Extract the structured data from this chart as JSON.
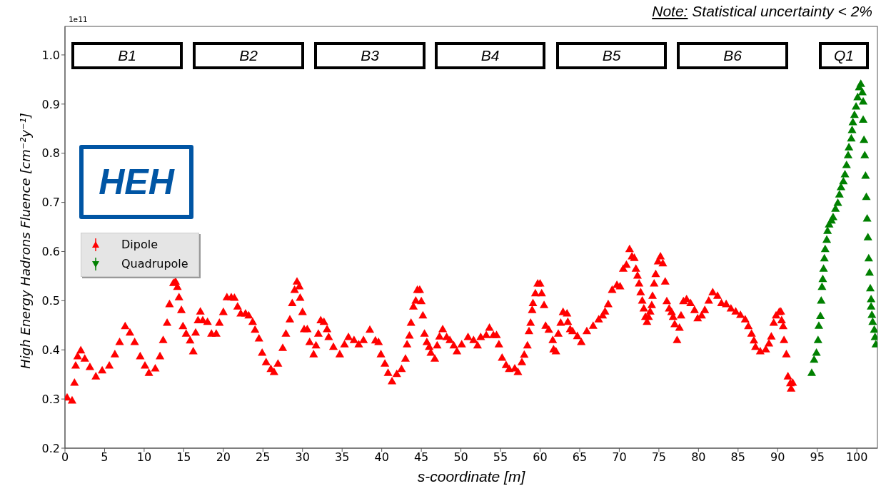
{
  "chart_data": {
    "type": "scatter",
    "xlabel": "s-coordinate [m]",
    "ylabel": "High Energy Hadrons Fluence [cm⁻²y⁻¹]",
    "annotations": [
      "Note: Statistical uncertainty < 2%",
      "1e11",
      "HEH",
      "B1",
      "B2",
      "B3",
      "B4",
      "B5",
      "B6",
      "Q1"
    ],
    "xlim": [
      0,
      102.6
    ],
    "xticks": [
      0,
      5,
      10,
      15,
      20,
      25,
      30,
      35,
      40,
      45,
      50,
      55,
      60,
      65,
      70,
      75,
      80,
      85,
      90,
      95,
      100
    ],
    "ylim": [
      0.2,
      1.058
    ],
    "yticks": [
      0.2,
      0.3,
      0.4,
      0.5,
      0.6,
      0.7,
      0.8,
      0.9,
      {
        "value": 1.0,
        "label": "1.0"
      }
    ],
    "grid": false,
    "legend": "left",
    "marker": "triangle",
    "series": [
      {
        "name": "Dipole",
        "color": "#ff0000",
        "x": [
          0.27,
          0.9,
          1.2,
          1.35,
          1.6,
          2.0,
          2.5,
          3.15,
          3.9,
          4.7,
          5.6,
          6.3,
          6.9,
          7.6,
          8.2,
          8.8,
          9.5,
          10.1,
          10.6,
          11.4,
          12.0,
          12.4,
          12.9,
          13.2,
          13.7,
          13.96,
          14.2,
          14.4,
          14.7,
          14.9,
          15.3,
          15.8,
          16.2,
          16.5,
          16.8,
          17.1,
          17.4,
          18.0,
          18.5,
          19.1,
          19.5,
          20.0,
          20.45,
          21.0,
          21.4,
          21.8,
          22.2,
          22.8,
          23.2,
          23.7,
          24.0,
          24.5,
          24.9,
          25.4,
          26.0,
          26.4,
          26.9,
          27.5,
          27.9,
          28.4,
          28.7,
          29.0,
          29.3,
          29.6,
          29.7,
          30.0,
          30.2,
          30.6,
          30.9,
          31.4,
          31.7,
          32.0,
          32.3,
          32.7,
          33.1,
          33.3,
          33.9,
          34.7,
          35.3,
          35.8,
          36.5,
          37.1,
          37.7,
          38.5,
          39.2,
          39.6,
          39.9,
          40.4,
          40.8,
          41.3,
          41.9,
          42.5,
          43.0,
          43.2,
          43.5,
          43.7,
          44.0,
          44.3,
          44.5,
          44.8,
          45.0,
          45.2,
          45.4,
          45.7,
          46.0,
          46.2,
          46.7,
          47.0,
          47.3,
          47.7,
          48.2,
          48.6,
          49.1,
          49.5,
          50.1,
          50.9,
          51.6,
          52.1,
          52.5,
          53.2,
          53.6,
          54.1,
          54.5,
          54.8,
          55.2,
          55.7,
          56.1,
          56.8,
          57.2,
          57.7,
          58.0,
          58.4,
          58.6,
          58.8,
          59.0,
          59.1,
          59.4,
          59.7,
          60.0,
          60.2,
          60.5,
          60.7,
          61.1,
          61.6,
          61.7,
          62.0,
          62.3,
          62.6,
          62.9,
          63.4,
          63.5,
          63.8,
          64.1,
          64.7,
          65.2,
          65.9,
          66.7,
          67.4,
          67.9,
          68.2,
          68.6,
          69.1,
          69.7,
          70.1,
          70.5,
          70.9,
          71.3,
          71.6,
          71.9,
          72.1,
          72.3,
          72.5,
          72.7,
          72.9,
          73.1,
          73.3,
          73.5,
          73.7,
          73.9,
          74.1,
          74.2,
          74.4,
          74.6,
          74.9,
          75.2,
          75.5,
          75.8,
          76.0,
          76.3,
          76.6,
          76.8,
          77.0,
          77.3,
          77.6,
          77.8,
          78.1,
          78.5,
          79.0,
          79.5,
          79.9,
          80.4,
          80.8,
          81.3,
          81.8,
          82.4,
          82.9,
          83.5,
          84.1,
          84.7,
          85.3,
          85.9,
          86.3,
          86.7,
          87.0,
          87.2,
          87.8,
          88.5,
          88.9,
          89.2,
          89.5,
          89.8,
          90.2,
          90.4,
          90.5,
          90.7,
          90.8,
          91.1,
          91.3,
          91.6,
          91.7,
          91.9
        ],
        "values": [
          0.302,
          0.296,
          0.332,
          0.367,
          0.386,
          0.398,
          0.381,
          0.364,
          0.345,
          0.357,
          0.367,
          0.39,
          0.415,
          0.447,
          0.434,
          0.415,
          0.386,
          0.367,
          0.352,
          0.361,
          0.386,
          0.419,
          0.454,
          0.492,
          0.535,
          0.538,
          0.527,
          0.506,
          0.48,
          0.447,
          0.432,
          0.418,
          0.396,
          0.434,
          0.459,
          0.477,
          0.459,
          0.456,
          0.432,
          0.432,
          0.454,
          0.476,
          0.506,
          0.506,
          0.505,
          0.487,
          0.473,
          0.473,
          0.469,
          0.456,
          0.44,
          0.422,
          0.393,
          0.374,
          0.36,
          0.354,
          0.371,
          0.403,
          0.432,
          0.461,
          0.494,
          0.521,
          0.538,
          0.528,
          0.505,
          0.476,
          0.441,
          0.441,
          0.415,
          0.39,
          0.408,
          0.432,
          0.459,
          0.456,
          0.441,
          0.425,
          0.405,
          0.39,
          0.41,
          0.425,
          0.419,
          0.41,
          0.419,
          0.44,
          0.418,
          0.415,
          0.39,
          0.371,
          0.352,
          0.335,
          0.35,
          0.36,
          0.381,
          0.41,
          0.428,
          0.454,
          0.487,
          0.499,
          0.521,
          0.521,
          0.498,
          0.469,
          0.432,
          0.415,
          0.405,
          0.393,
          0.381,
          0.408,
          0.426,
          0.441,
          0.425,
          0.419,
          0.408,
          0.396,
          0.41,
          0.425,
          0.419,
          0.408,
          0.425,
          0.429,
          0.444,
          0.429,
          0.429,
          0.41,
          0.383,
          0.368,
          0.36,
          0.361,
          0.354,
          0.374,
          0.389,
          0.408,
          0.437,
          0.454,
          0.48,
          0.494,
          0.514,
          0.534,
          0.534,
          0.514,
          0.49,
          0.448,
          0.44,
          0.419,
          0.4,
          0.396,
          0.432,
          0.454,
          0.476,
          0.473,
          0.456,
          0.441,
          0.437,
          0.427,
          0.415,
          0.437,
          0.448,
          0.461,
          0.469,
          0.477,
          0.492,
          0.521,
          0.531,
          0.528,
          0.564,
          0.572,
          0.604,
          0.589,
          0.586,
          0.564,
          0.55,
          0.534,
          0.516,
          0.499,
          0.483,
          0.466,
          0.456,
          0.466,
          0.477,
          0.49,
          0.509,
          0.534,
          0.553,
          0.579,
          0.589,
          0.575,
          0.538,
          0.498,
          0.483,
          0.476,
          0.466,
          0.451,
          0.419,
          0.444,
          0.469,
          0.498,
          0.502,
          0.494,
          0.48,
          0.463,
          0.469,
          0.48,
          0.499,
          0.516,
          0.509,
          0.494,
          0.492,
          0.483,
          0.477,
          0.47,
          0.461,
          0.447,
          0.432,
          0.418,
          0.405,
          0.396,
          0.4,
          0.412,
          0.426,
          0.454,
          0.469,
          0.476,
          0.477,
          0.459,
          0.447,
          0.419,
          0.39,
          0.345,
          0.331,
          0.32,
          0.332
        ]
      },
      {
        "name": "Quadrupole",
        "color": "#008000",
        "x": [
          94.3,
          94.6,
          94.9,
          95.1,
          95.2,
          95.4,
          95.5,
          95.6,
          95.7,
          95.8,
          95.9,
          96.0,
          96.2,
          96.3,
          96.5,
          96.8,
          97.0,
          97.3,
          97.6,
          97.8,
          98.0,
          98.3,
          98.5,
          98.7,
          98.9,
          99.0,
          99.3,
          99.4,
          99.5,
          99.7,
          99.9,
          100.1,
          100.3,
          100.5,
          100.7,
          100.8,
          100.8,
          100.9,
          101.0,
          101.1,
          101.2,
          101.3,
          101.4,
          101.5,
          101.6,
          101.7,
          101.8,
          101.8,
          101.9,
          102.0,
          102.2,
          102.3,
          102.4
        ],
        "values": [
          0.352,
          0.379,
          0.393,
          0.419,
          0.448,
          0.468,
          0.499,
          0.527,
          0.543,
          0.564,
          0.585,
          0.604,
          0.623,
          0.641,
          0.654,
          0.662,
          0.669,
          0.686,
          0.698,
          0.715,
          0.73,
          0.742,
          0.756,
          0.775,
          0.795,
          0.811,
          0.829,
          0.846,
          0.862,
          0.877,
          0.894,
          0.913,
          0.933,
          0.94,
          0.923,
          0.904,
          0.867,
          0.826,
          0.795,
          0.753,
          0.71,
          0.666,
          0.628,
          0.585,
          0.556,
          0.524,
          0.502,
          0.487,
          0.47,
          0.456,
          0.44,
          0.425,
          0.41
        ]
      }
    ]
  }
}
